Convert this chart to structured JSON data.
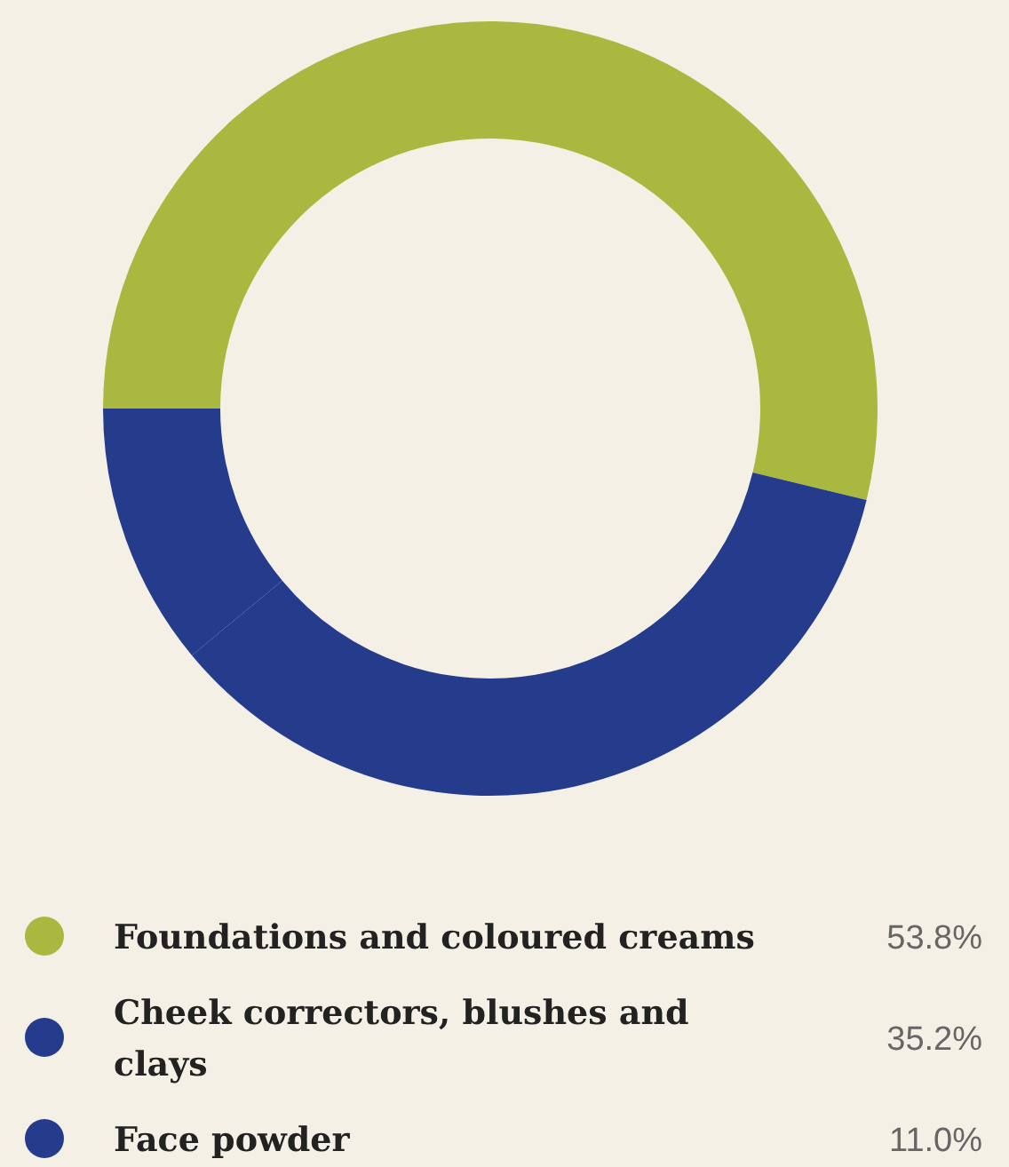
{
  "chart_data": {
    "type": "donut",
    "categories": [
      "Foundations and coloured creams",
      "Cheek correctors, blushes and clays",
      "Face powder"
    ],
    "values": [
      53.8,
      35.2,
      11.0
    ],
    "colors": [
      "#a9b940",
      "#253c8d",
      "#253c8d"
    ],
    "value_labels": [
      "53.8%",
      "35.2%",
      "11.0%"
    ],
    "legend": "bottom"
  }
}
